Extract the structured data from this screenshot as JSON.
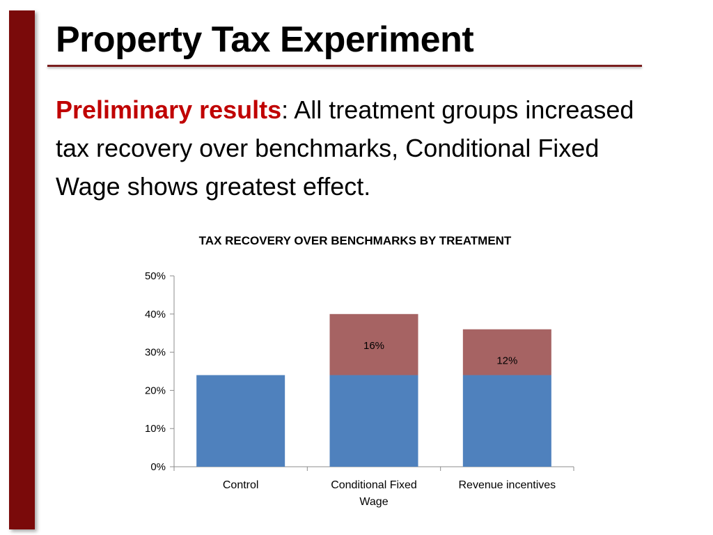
{
  "slide": {
    "title": "Property Tax Experiment",
    "body_highlight": "Preliminary results",
    "body_text": ": All treatment groups increased tax recovery over benchmarks, Conditional Fixed Wage shows greatest effect."
  },
  "colors": {
    "accent_bar": "#7a0a0a",
    "highlight_text": "#c00000",
    "base_series": "#4f81bd",
    "increase_series": "#a66363"
  },
  "chart_data": {
    "type": "bar",
    "stacked": true,
    "title": "TAX RECOVERY OVER BENCHMARKS BY TREATMENT",
    "xlabel": "",
    "ylabel": "",
    "categories": [
      "Control",
      "Conditional Fixed Wage",
      "Revenue incentives"
    ],
    "series": [
      {
        "values": [
          24,
          24,
          24
        ],
        "color": "#4f81bd",
        "labels": [
          null,
          null,
          null
        ]
      },
      {
        "values": [
          0,
          16,
          12
        ],
        "color": "#a66363",
        "labels": [
          null,
          "16%",
          "12%"
        ]
      }
    ],
    "ylim": [
      0,
      50
    ],
    "yticks": [
      0,
      10,
      20,
      30,
      40,
      50
    ],
    "ytick_labels": [
      "0%",
      "10%",
      "20%",
      "30%",
      "40%",
      "50%"
    ],
    "grid": false,
    "legend": "none"
  }
}
